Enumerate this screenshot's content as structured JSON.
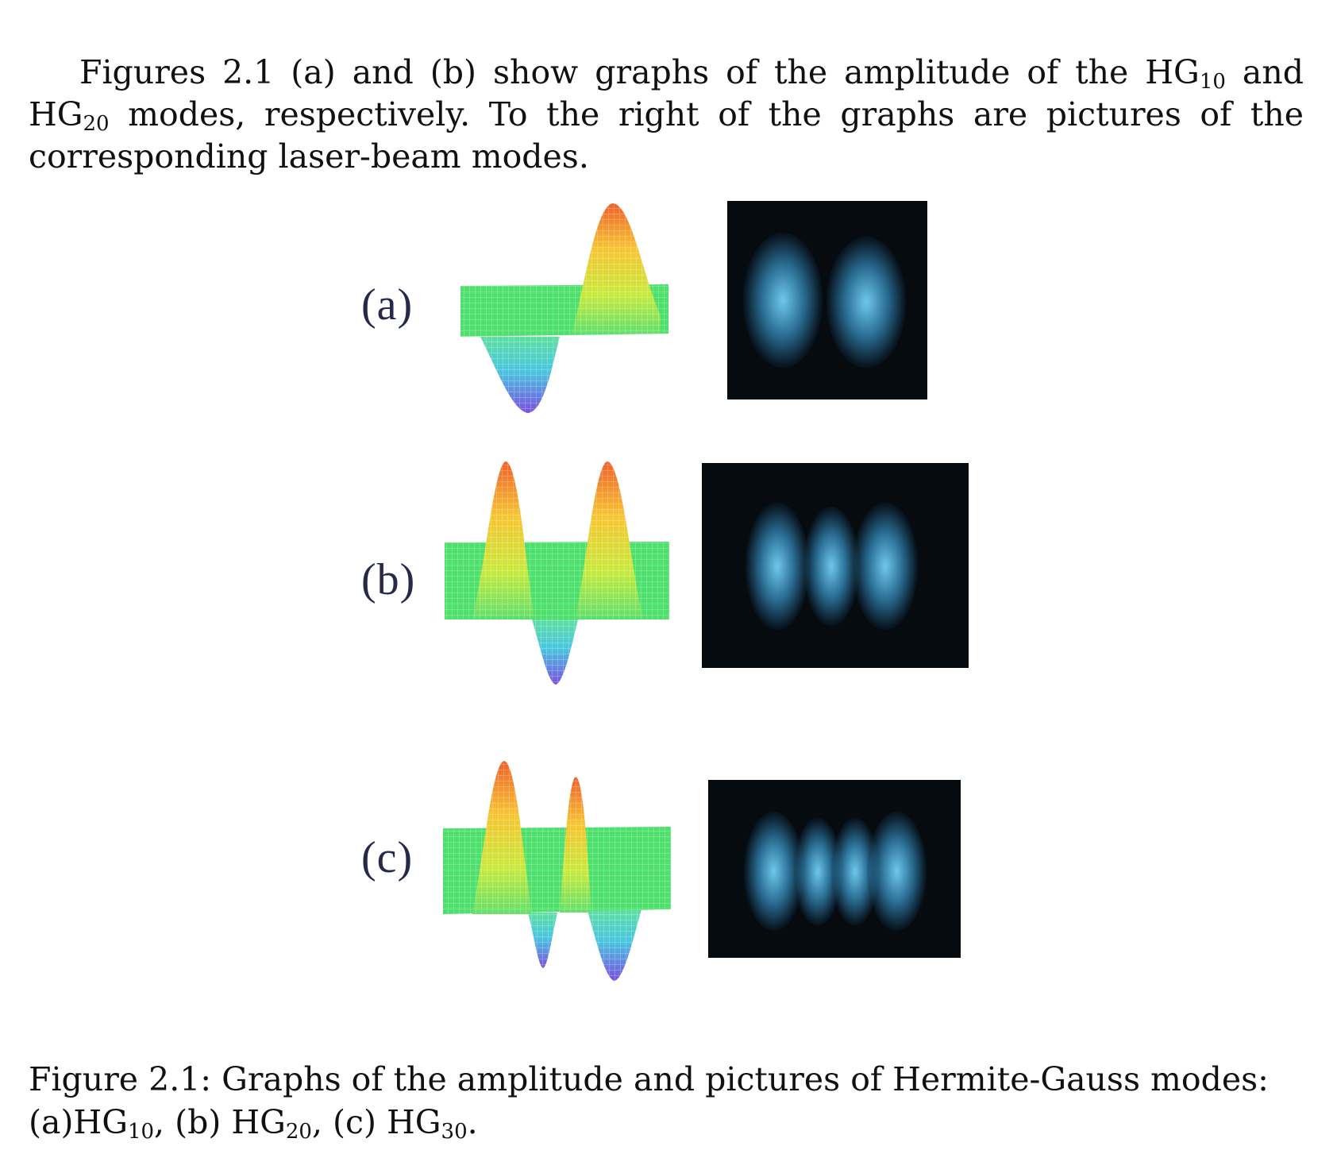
{
  "paragraph": {
    "t1": "Figures 2.1 (a) and (b) show graphs of the amplitude of the HG",
    "s1": "10",
    "t2": " and HG",
    "s2": "20",
    "t3": " modes, respectively. To the right of the graphs are pictures of the corresponding laser-beam modes."
  },
  "figure": {
    "panels": [
      {
        "label": "(a)",
        "mode": "HG10"
      },
      {
        "label": "(b)",
        "mode": "HG20"
      },
      {
        "label": "(c)",
        "mode": "HG30"
      }
    ]
  },
  "caption": {
    "t1": "Figure 2.1: Graphs of the amplitude and pictures of Hermite-Gauss modes: (a)HG",
    "s1": "10",
    "t2": ", (b) HG",
    "s2": "20",
    "t3": ", (c) HG",
    "s3": "30",
    "t4": "."
  },
  "colors": {
    "plot_plane": "#4ee06c",
    "plot_peak": "#f0602a",
    "plot_trough": "#7a4fe0",
    "beam_background": "#060b10",
    "beam_glow": "#6fd0f5"
  }
}
